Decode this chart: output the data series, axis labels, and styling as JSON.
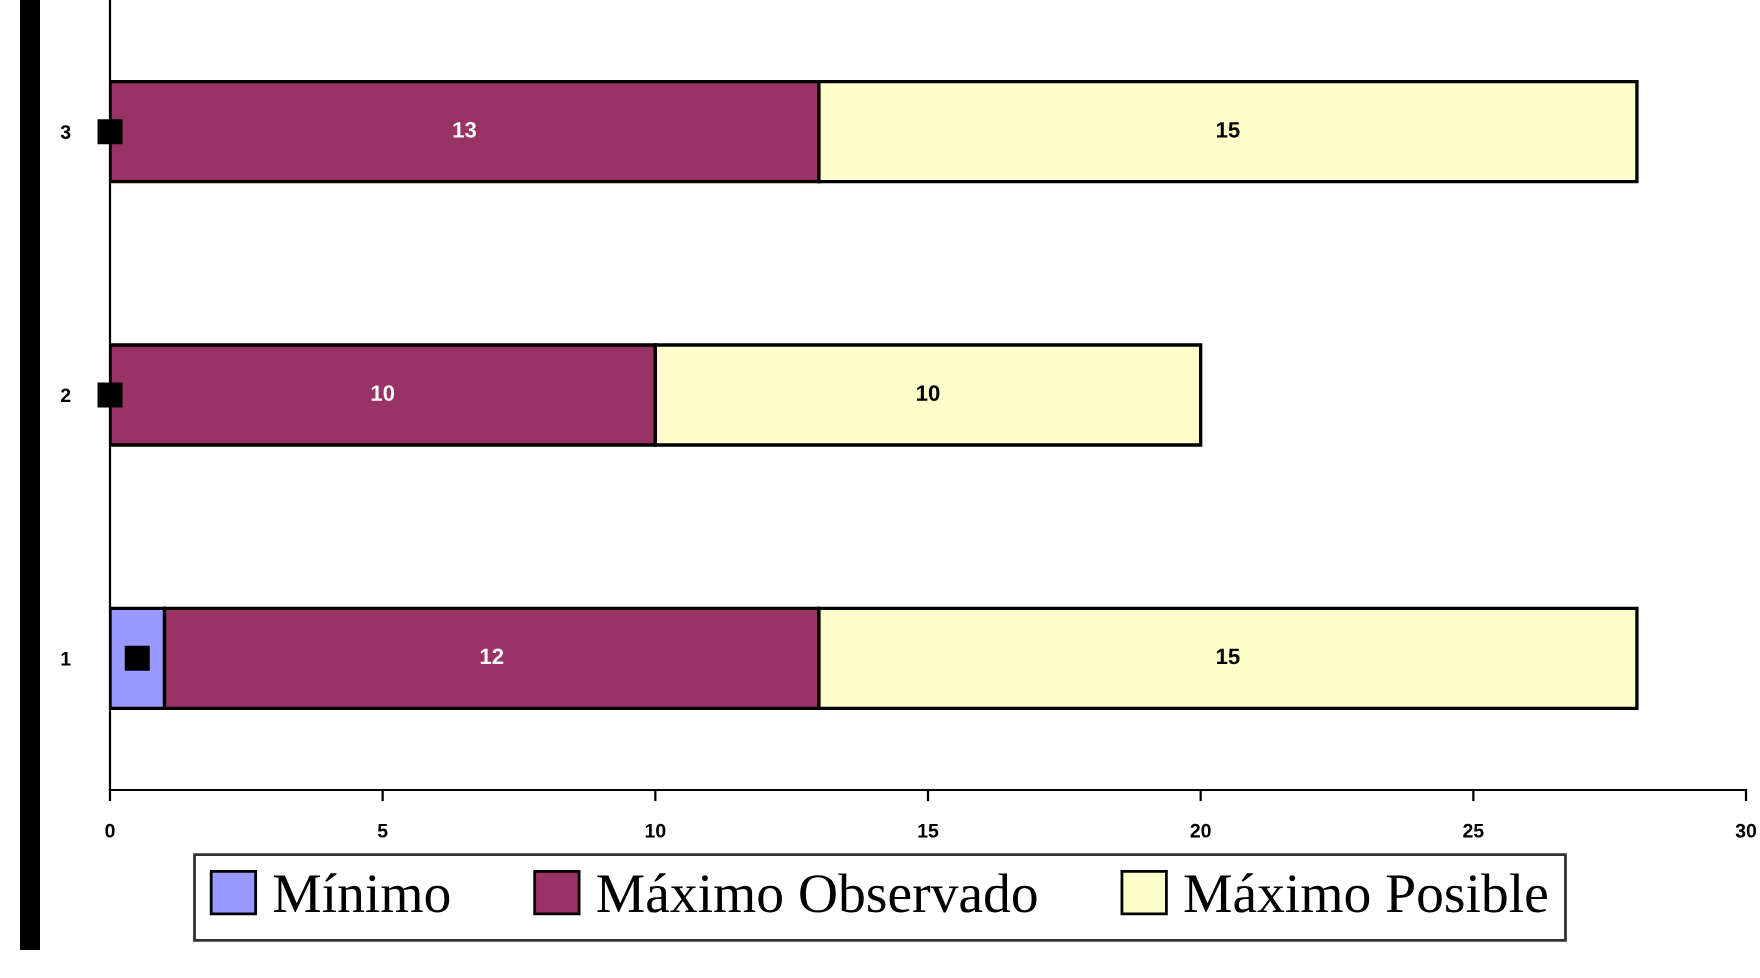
{
  "chart_data": {
    "type": "bar",
    "orientation": "horizontal",
    "stacked": true,
    "categories": [
      "3",
      "2",
      "1"
    ],
    "series": [
      {
        "name": "Mínimo",
        "color": "#9999ff",
        "values": [
          0,
          0,
          1
        ],
        "value_labels": [
          null,
          null,
          null
        ]
      },
      {
        "name": "Máximo Observado",
        "color": "#993366",
        "values": [
          13,
          10,
          12
        ],
        "value_labels": [
          "13",
          "10",
          "12"
        ]
      },
      {
        "name": "Máximo Posible",
        "color": "#ffffcc",
        "values": [
          15,
          10,
          15
        ],
        "value_labels": [
          "15",
          "10",
          "15"
        ]
      },
      {
        "type": "scatter",
        "color": "#000000",
        "marker": "square",
        "values": [
          0,
          0,
          0.5
        ],
        "x": [
          "3",
          "2",
          "1"
        ]
      }
    ],
    "xlim": [
      0,
      30
    ],
    "xticks": [
      0,
      5,
      10,
      15,
      20,
      25,
      30
    ],
    "grid": false,
    "legend": "bottom"
  }
}
